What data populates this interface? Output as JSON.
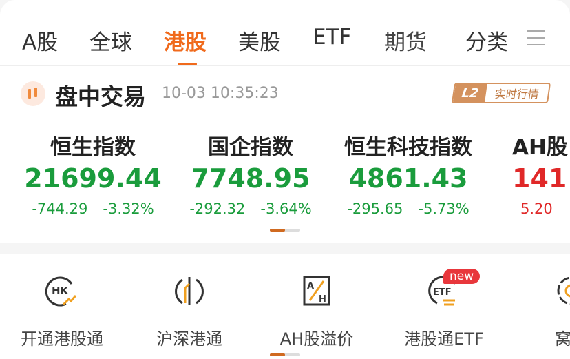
{
  "tabs": [
    {
      "label": "A股"
    },
    {
      "label": "全球"
    },
    {
      "label": "港股",
      "active": true
    },
    {
      "label": "美股"
    },
    {
      "label": "ETF"
    },
    {
      "label": "期货"
    },
    {
      "label": "分类"
    }
  ],
  "session": {
    "title": "盘中交易",
    "time": "10-03 10:35:23",
    "badge_l2": "L2",
    "badge_text": "实时行情"
  },
  "indices": [
    {
      "name": "恒生指数",
      "value": "21699.44",
      "change": "-744.29",
      "pct": "-3.32%",
      "trend": "down"
    },
    {
      "name": "国企指数",
      "value": "7748.95",
      "change": "-292.32",
      "pct": "-3.64%",
      "trend": "down"
    },
    {
      "name": "恒生科技指数",
      "value": "4861.43",
      "change": "-295.65",
      "pct": "-5.73%",
      "trend": "down"
    },
    {
      "name": "AH股",
      "value": "141",
      "change": "5.20",
      "pct": "",
      "trend": "up"
    }
  ],
  "entries": [
    {
      "label": "开通港股通",
      "icon": "hk-trend-icon"
    },
    {
      "label": "沪深港通",
      "icon": "buildings-icon"
    },
    {
      "label": "AH股溢价",
      "icon": "ah-premium-icon"
    },
    {
      "label": "港股通ETF",
      "icon": "etf-exchange-icon"
    },
    {
      "label": "窝轮",
      "icon": "warrant-icon"
    }
  ],
  "new_badge": "new",
  "colors": {
    "accent": "#f06a1c",
    "down": "#1a9c3c",
    "up": "#e02828"
  }
}
